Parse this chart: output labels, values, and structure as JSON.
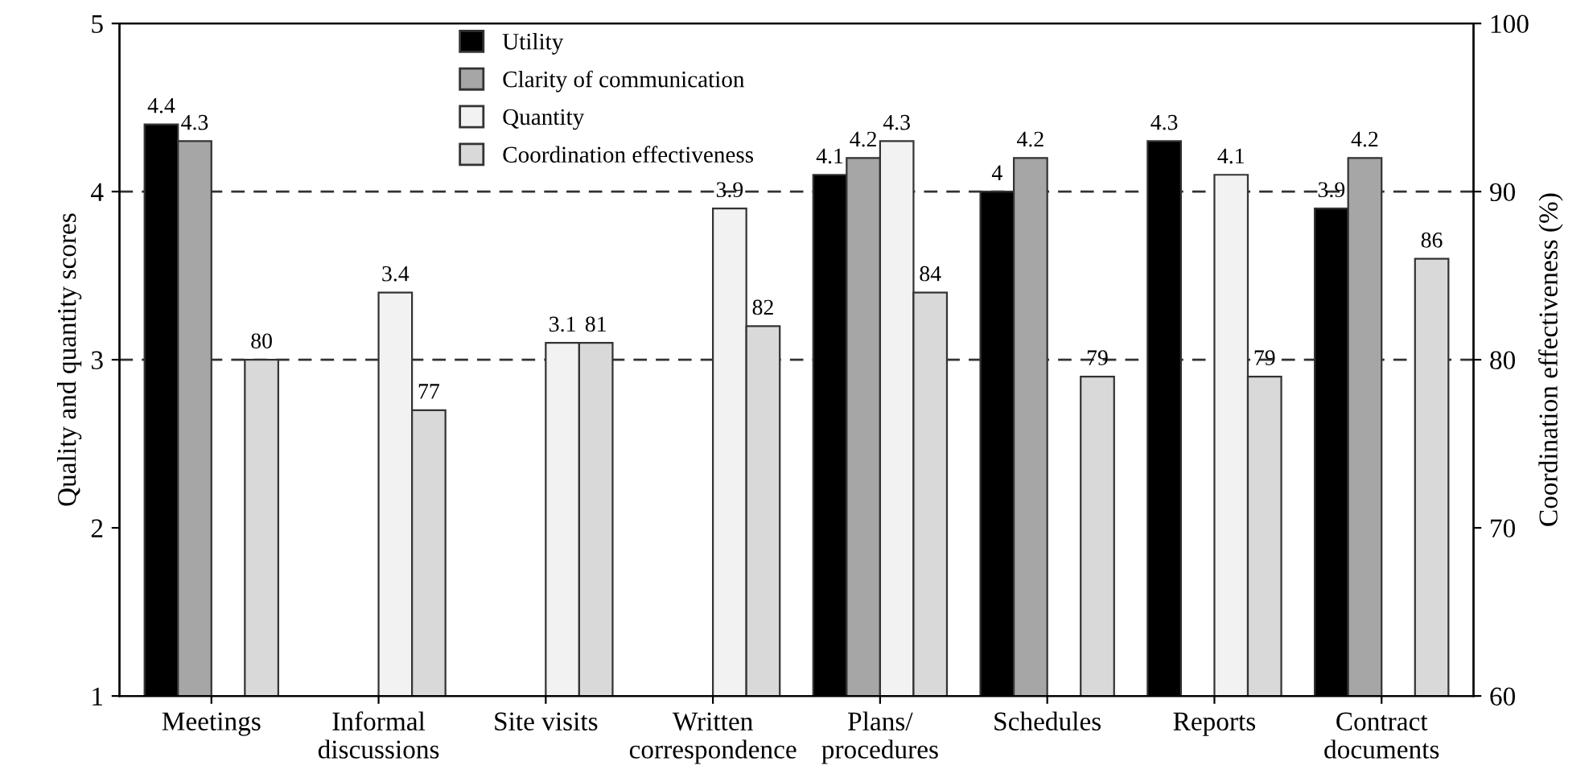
{
  "chart_data": {
    "type": "bar",
    "categories": [
      "Meetings",
      "Informal\ndiscussions",
      "Site visits",
      "Written\ncorrespondence",
      "Plans/\nprocedures",
      "Schedules",
      "Reports",
      "Contract\ndocuments"
    ],
    "series": [
      {
        "name": "Utility",
        "color": "#000000",
        "values": [
          4.4,
          null,
          null,
          null,
          4.1,
          4,
          4.3,
          3.9
        ]
      },
      {
        "name": "Clarity of communication",
        "color": "#a6a6a6",
        "values": [
          4.3,
          null,
          null,
          null,
          4.2,
          4.2,
          null,
          4.2
        ]
      },
      {
        "name": "Quantity",
        "color": "#f2f2f2",
        "values": [
          null,
          3.4,
          3.1,
          3.9,
          4.3,
          null,
          4.1,
          null
        ]
      },
      {
        "name": "Coordination effectiveness",
        "color": "#d9d9d9",
        "axis": "y2",
        "values": [
          80,
          77,
          81,
          82,
          84,
          79,
          79,
          86
        ]
      }
    ],
    "ylabel": "Quality and quantity scores",
    "y2label": "Coordination effectiveness (%)",
    "ylim": [
      1,
      5
    ],
    "yticks": [
      1,
      2,
      3,
      4,
      5
    ],
    "y2lim": [
      60,
      100
    ],
    "y2ticks": [
      60,
      70,
      80,
      90,
      100
    ],
    "ref_lines": [
      {
        "axis": "y",
        "value": 4
      },
      {
        "axis": "y",
        "value": 3
      }
    ],
    "data_labels": true,
    "legend": "top",
    "grid": false
  }
}
